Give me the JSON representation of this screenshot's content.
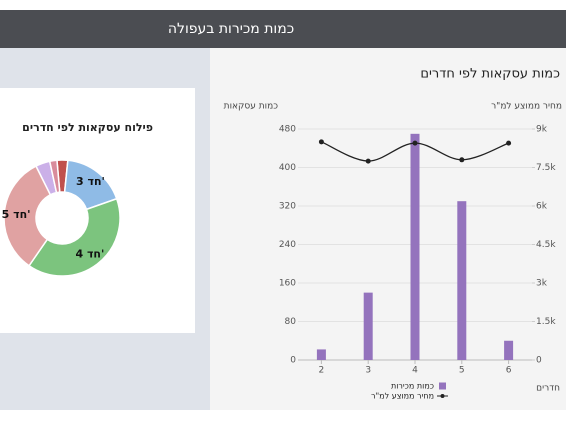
{
  "header": {
    "title": "כמות מכירות בעפולה"
  },
  "chart_data": [
    {
      "type": "bar",
      "title": "כמות עסקאות לפי חדרים",
      "ylabel": "כמות עסקאות",
      "y2label": "מחיר ממוצע למ\"ר",
      "xlabel": "חדרים",
      "categories": [
        "2",
        "3",
        "4",
        "5",
        "6"
      ],
      "series": [
        {
          "name": "כמות מכירות",
          "type": "bar",
          "color": "#9473bd",
          "values": [
            22,
            140,
            470,
            330,
            40
          ]
        },
        {
          "name": "מחיר ממוצע למ\"ר",
          "type": "line",
          "axis": "y2",
          "color": "#222222",
          "values": [
            8500,
            7750,
            8450,
            7800,
            8450
          ]
        }
      ],
      "ylim": [
        0,
        480
      ],
      "yticks": [
        0,
        80,
        160,
        240,
        320,
        400,
        480
      ],
      "y2lim": [
        0,
        9000
      ],
      "y2ticks": [
        0,
        {
          "value": 1500,
          "label": "1.5k"
        },
        {
          "value": 3000,
          "label": "3k"
        },
        {
          "value": 4500,
          "label": "4.5k"
        },
        {
          "value": 6000,
          "label": "6k"
        },
        {
          "value": 7500,
          "label": "7.5k"
        },
        {
          "value": 9000,
          "label": "9k"
        }
      ],
      "grid": true,
      "legend": "bottom"
    },
    {
      "type": "donut",
      "title": "פילוח עסקאות לפי חדרים",
      "categories": [
        null,
        "3 חד'",
        "4 חד'",
        "5 חד'",
        null,
        null
      ],
      "values": [
        3,
        18,
        40,
        33,
        4,
        2
      ],
      "colors": [
        "#c0504d",
        "#8fbbe6",
        "#7cc47e",
        "#e0a2a2",
        "#cbb0e8",
        "#d98c9c"
      ]
    }
  ]
}
